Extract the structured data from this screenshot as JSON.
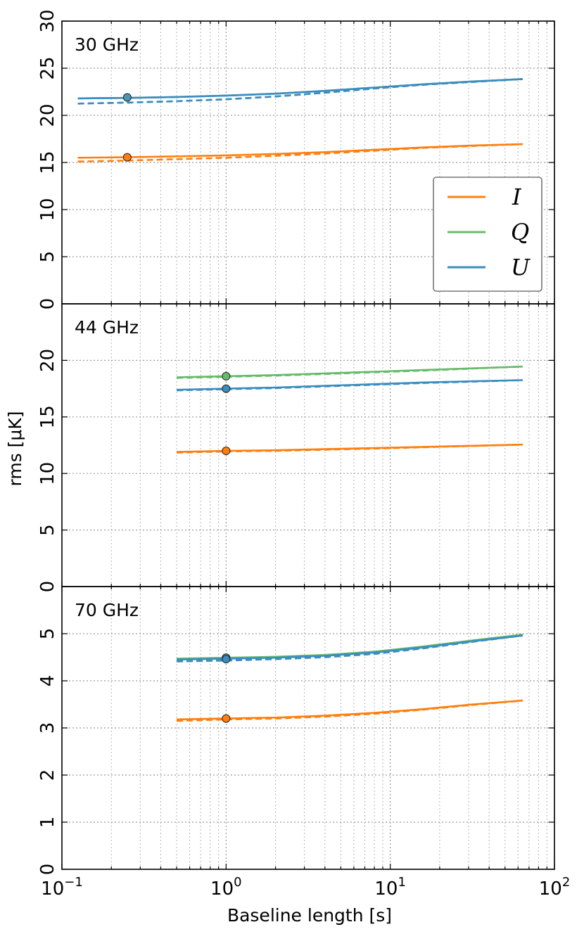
{
  "chart_data": [
    {
      "type": "line",
      "panel_label": "30 GHz",
      "ylim": [
        0,
        30
      ],
      "yticks": [
        0,
        5,
        10,
        15,
        20,
        25,
        30
      ],
      "x_scale": "log",
      "xlim": [
        0.1,
        100
      ],
      "legend": {
        "position": "center-right",
        "entries": [
          "I",
          "Q",
          "U"
        ]
      },
      "series": [
        {
          "name": "I",
          "style": "solid",
          "color": "#ff7f0e",
          "x": [
            0.125,
            0.25,
            0.5,
            1,
            2,
            4,
            8,
            16,
            32,
            64
          ],
          "y": [
            15.5,
            15.55,
            15.65,
            15.75,
            15.9,
            16.1,
            16.35,
            16.6,
            16.8,
            16.95
          ]
        },
        {
          "name": "I (dashed)",
          "style": "dashed",
          "color": "#ff7f0e",
          "x": [
            0.125,
            0.25,
            0.5,
            1,
            2,
            4,
            8,
            16,
            32,
            64
          ],
          "y": [
            15.1,
            15.2,
            15.35,
            15.5,
            15.7,
            15.95,
            16.25,
            16.55,
            16.75,
            16.95
          ]
        },
        {
          "name": "Q",
          "style": "solid",
          "color": "#5aa0a0",
          "x": [
            0.125,
            0.25,
            0.5,
            1,
            2,
            4,
            8,
            16,
            32,
            64
          ],
          "y": [
            21.8,
            21.85,
            21.95,
            22.1,
            22.3,
            22.6,
            22.95,
            23.3,
            23.6,
            23.85
          ]
        },
        {
          "name": "Q (dashed)",
          "style": "dashed",
          "color": "#5aa0a0",
          "x": [
            0.125,
            0.25,
            0.5,
            1,
            2,
            4,
            8,
            16,
            32,
            64
          ],
          "y": [
            21.25,
            21.35,
            21.5,
            21.7,
            22.0,
            22.4,
            22.85,
            23.25,
            23.55,
            23.85
          ]
        },
        {
          "name": "U",
          "style": "solid",
          "color": "#3a8dbf",
          "x": [
            0.125,
            0.25,
            0.5,
            1,
            2,
            4,
            8,
            16,
            32,
            64
          ],
          "y": [
            21.8,
            21.85,
            21.95,
            22.1,
            22.3,
            22.6,
            22.95,
            23.3,
            23.6,
            23.85
          ]
        },
        {
          "name": "U (dashed)",
          "style": "dashed",
          "color": "#3a8dbf",
          "x": [
            0.125,
            0.25,
            0.5,
            1,
            2,
            4,
            8,
            16,
            32,
            64
          ],
          "y": [
            21.25,
            21.35,
            21.5,
            21.7,
            22.0,
            22.4,
            22.85,
            23.25,
            23.55,
            23.85
          ]
        }
      ],
      "markers": [
        {
          "x": 0.25,
          "y": 15.55,
          "color": "#ff7f0e"
        },
        {
          "x": 0.25,
          "y": 21.9,
          "color": "#4a95b5"
        }
      ]
    },
    {
      "type": "line",
      "panel_label": "44 GHz",
      "ylim": [
        0,
        25
      ],
      "yticks": [
        0,
        5,
        10,
        15,
        20
      ],
      "x_scale": "log",
      "xlim": [
        0.1,
        100
      ],
      "series": [
        {
          "name": "I",
          "style": "solid",
          "color": "#ff7f0e",
          "x": [
            0.5,
            1,
            2,
            4,
            8,
            16,
            32,
            64
          ],
          "y": [
            11.9,
            12.0,
            12.05,
            12.15,
            12.25,
            12.35,
            12.45,
            12.55
          ]
        },
        {
          "name": "I (dashed)",
          "style": "dashed",
          "color": "#ff7f0e",
          "x": [
            0.5,
            1,
            2,
            4,
            8,
            16,
            32,
            64
          ],
          "y": [
            11.85,
            11.95,
            12.0,
            12.1,
            12.2,
            12.32,
            12.44,
            12.55
          ]
        },
        {
          "name": "Q",
          "style": "solid",
          "color": "#66bb6a",
          "x": [
            0.5,
            1,
            2,
            4,
            8,
            16,
            32,
            64
          ],
          "y": [
            18.5,
            18.6,
            18.7,
            18.85,
            19.0,
            19.15,
            19.3,
            19.45
          ]
        },
        {
          "name": "Q (dashed)",
          "style": "dashed",
          "color": "#66bb6a",
          "x": [
            0.5,
            1,
            2,
            4,
            8,
            16,
            32,
            64
          ],
          "y": [
            18.45,
            18.55,
            18.65,
            18.8,
            18.95,
            19.1,
            19.28,
            19.45
          ]
        },
        {
          "name": "U",
          "style": "solid",
          "color": "#3a8dbf",
          "x": [
            0.5,
            1,
            2,
            4,
            8,
            16,
            32,
            64
          ],
          "y": [
            17.4,
            17.5,
            17.6,
            17.75,
            17.9,
            18.05,
            18.15,
            18.25
          ]
        },
        {
          "name": "U (dashed)",
          "style": "dashed",
          "color": "#3a8dbf",
          "x": [
            0.5,
            1,
            2,
            4,
            8,
            16,
            32,
            64
          ],
          "y": [
            17.35,
            17.45,
            17.55,
            17.7,
            17.85,
            18.0,
            18.12,
            18.25
          ]
        }
      ],
      "markers": [
        {
          "x": 1,
          "y": 18.6,
          "color": "#66bb6a"
        },
        {
          "x": 1,
          "y": 17.5,
          "color": "#3a8dbf"
        },
        {
          "x": 1,
          "y": 12.0,
          "color": "#ff7f0e"
        }
      ]
    },
    {
      "type": "line",
      "panel_label": "70 GHz",
      "ylim": [
        0,
        6
      ],
      "yticks": [
        0,
        1,
        2,
        3,
        4,
        5
      ],
      "x_scale": "log",
      "xlim": [
        0.1,
        100
      ],
      "series": [
        {
          "name": "I",
          "style": "solid",
          "color": "#ff7f0e",
          "x": [
            0.5,
            1,
            2,
            4,
            8,
            16,
            32,
            64
          ],
          "y": [
            3.18,
            3.2,
            3.22,
            3.26,
            3.32,
            3.4,
            3.5,
            3.58
          ]
        },
        {
          "name": "I (dashed)",
          "style": "dashed",
          "color": "#ff7f0e",
          "x": [
            0.5,
            1,
            2,
            4,
            8,
            16,
            32,
            64
          ],
          "y": [
            3.15,
            3.18,
            3.2,
            3.24,
            3.3,
            3.39,
            3.49,
            3.58
          ]
        },
        {
          "name": "Q",
          "style": "solid",
          "color": "#66bb6a",
          "x": [
            0.5,
            1,
            2,
            4,
            8,
            16,
            32,
            64
          ],
          "y": [
            4.47,
            4.49,
            4.51,
            4.55,
            4.62,
            4.73,
            4.86,
            4.98
          ]
        },
        {
          "name": "Q (dashed)",
          "style": "dashed",
          "color": "#66bb6a",
          "x": [
            0.5,
            1,
            2,
            4,
            8,
            16,
            32,
            64
          ],
          "y": [
            4.43,
            4.45,
            4.48,
            4.52,
            4.59,
            4.71,
            4.85,
            4.98
          ]
        },
        {
          "name": "U",
          "style": "solid",
          "color": "#3a8dbf",
          "x": [
            0.5,
            1,
            2,
            4,
            8,
            16,
            32,
            64
          ],
          "y": [
            4.45,
            4.47,
            4.49,
            4.53,
            4.6,
            4.71,
            4.84,
            4.96
          ]
        },
        {
          "name": "U (dashed)",
          "style": "dashed",
          "color": "#3a8dbf",
          "x": [
            0.5,
            1,
            2,
            4,
            8,
            16,
            32,
            64
          ],
          "y": [
            4.41,
            4.43,
            4.46,
            4.5,
            4.57,
            4.69,
            4.83,
            4.96
          ]
        }
      ],
      "markers": [
        {
          "x": 1,
          "y": 4.49,
          "color": "#66bb6a"
        },
        {
          "x": 1,
          "y": 4.46,
          "color": "#3a8dbf"
        },
        {
          "x": 1,
          "y": 3.2,
          "color": "#ff7f0e"
        }
      ]
    }
  ],
  "axes": {
    "xlabel": "Baseline length [s]",
    "ylabel": "rms [μK]",
    "xtick_labels": [
      {
        "base": "10",
        "exp": "−1"
      },
      {
        "base": "10",
        "exp": "0"
      },
      {
        "base": "10",
        "exp": "1"
      },
      {
        "base": "10",
        "exp": "2"
      }
    ]
  },
  "legend": {
    "entries": [
      {
        "label": "I",
        "color": "#ff7f0e"
      },
      {
        "label": "Q",
        "color": "#66bb6a"
      },
      {
        "label": "U",
        "color": "#3a8dbf"
      }
    ]
  }
}
